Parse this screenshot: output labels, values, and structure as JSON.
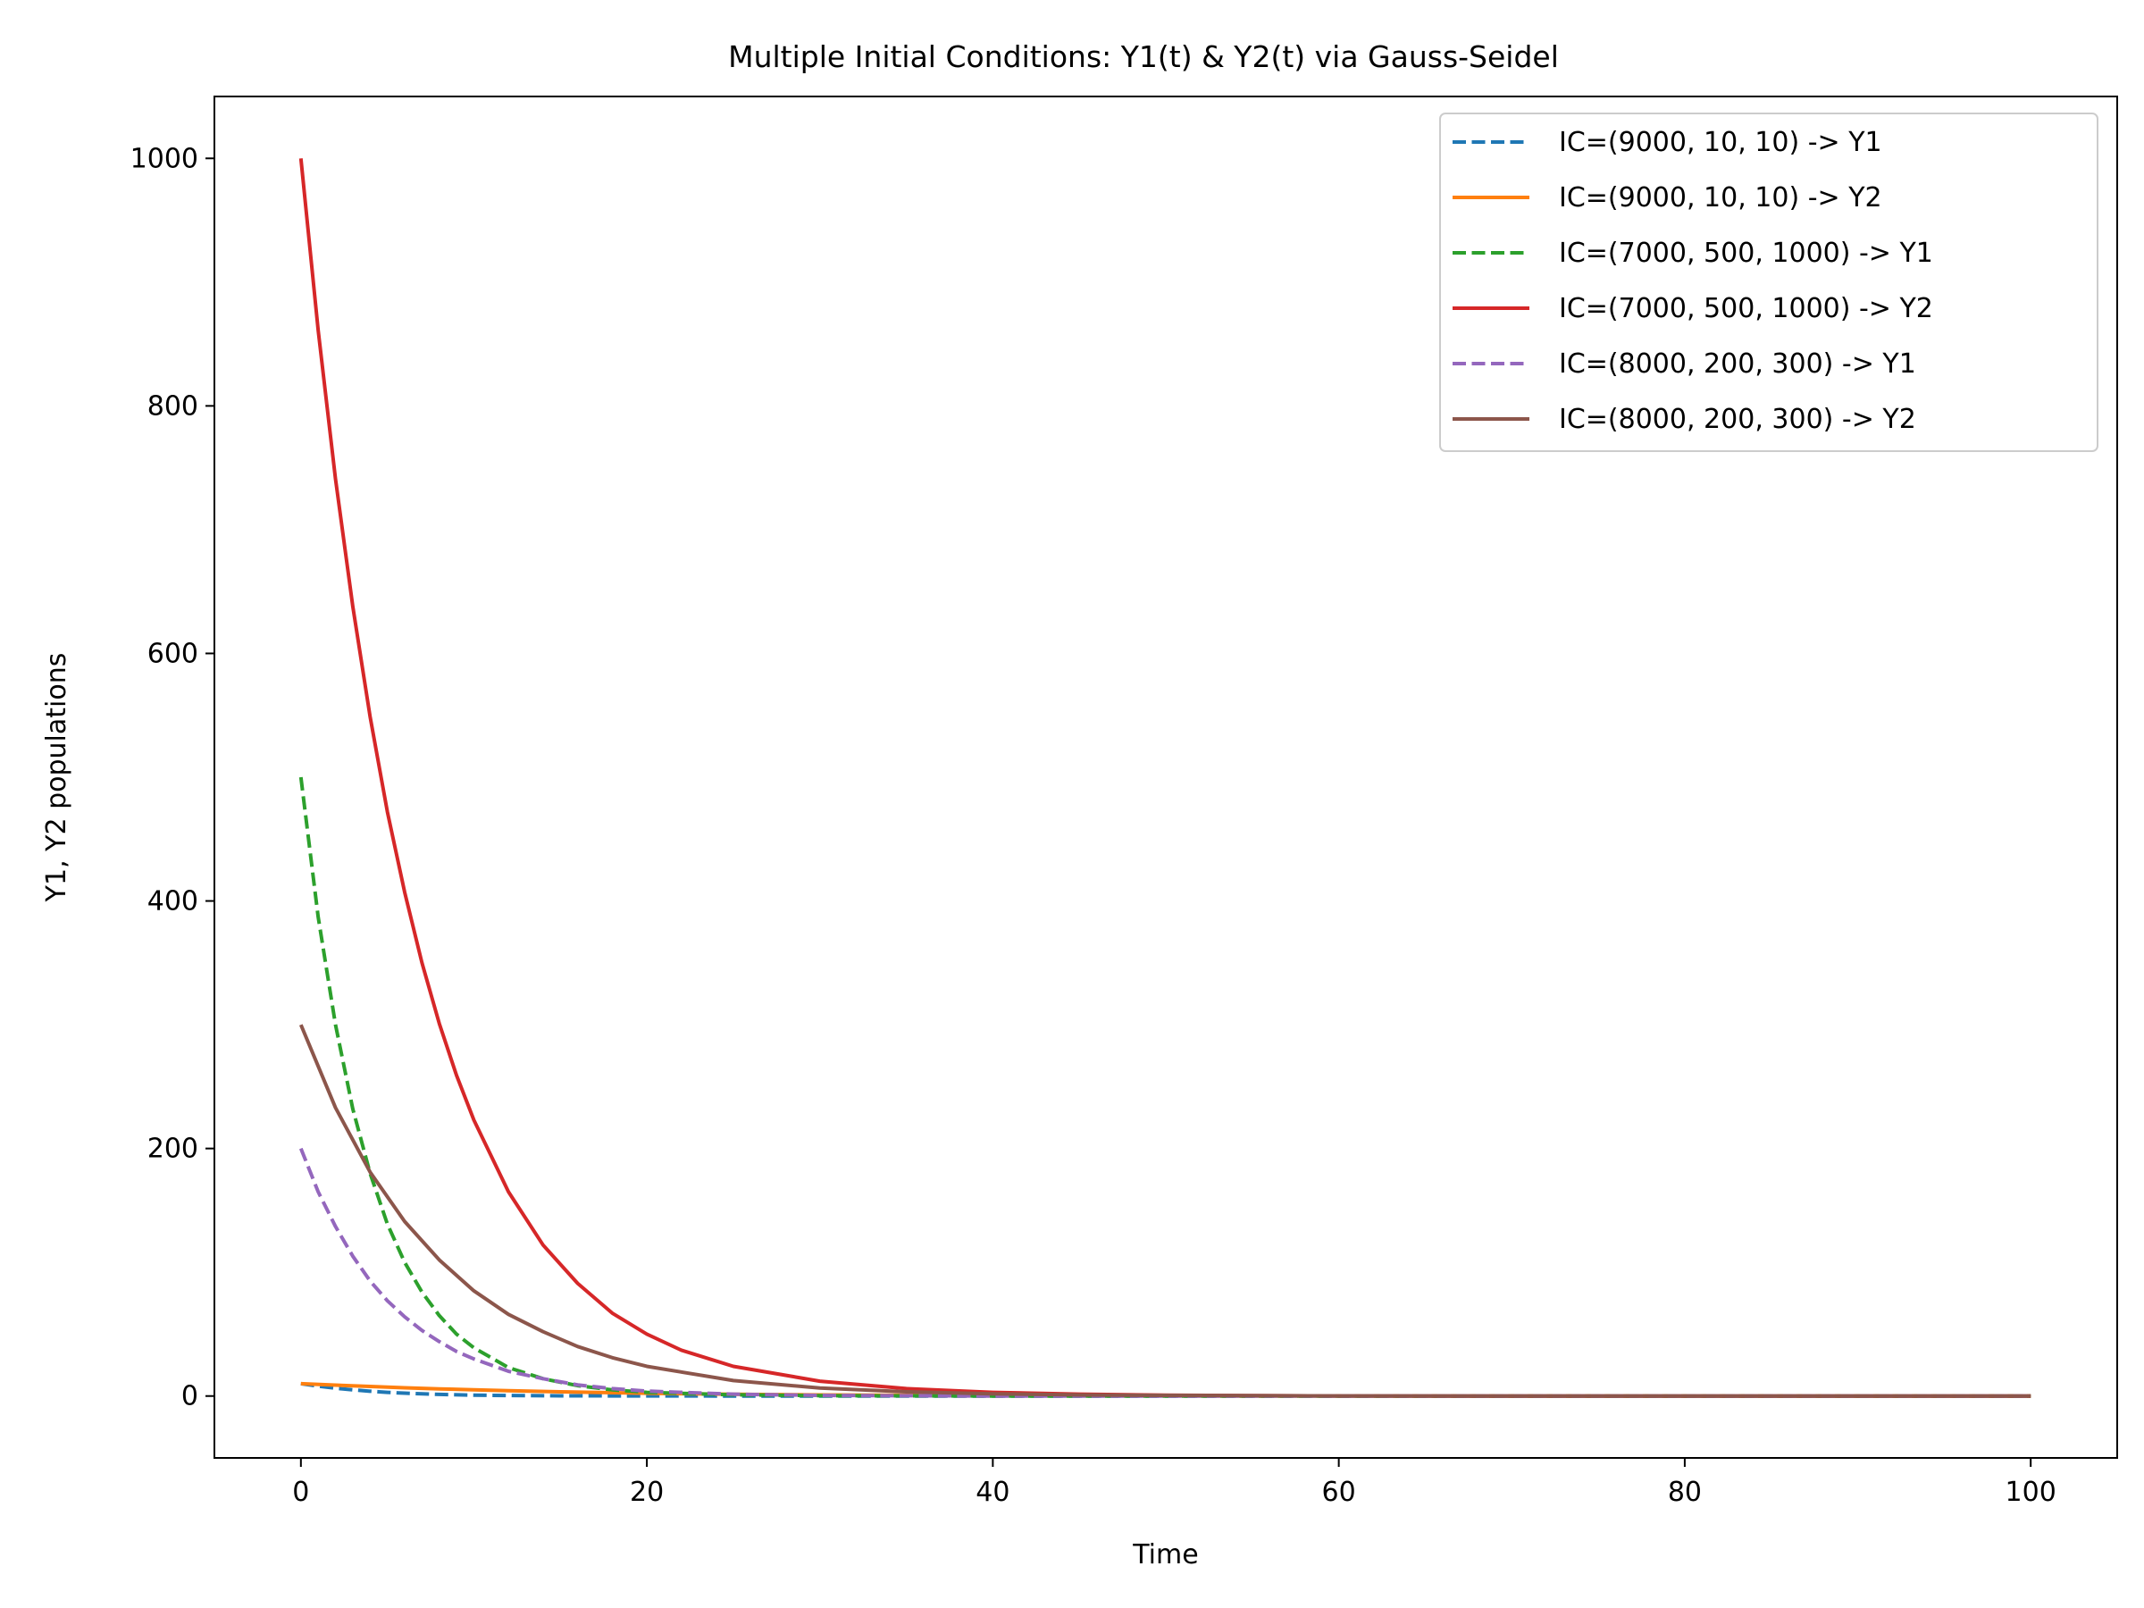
{
  "chart_data": {
    "type": "line",
    "title": "Multiple Initial Conditions: Y1(t) & Y2(t) via Gauss-Seidel",
    "xlabel": "Time",
    "ylabel": "Y1, Y2 populations",
    "xlim": [
      -5,
      105
    ],
    "ylim": [
      -50,
      1050
    ],
    "xticks": [
      0,
      20,
      40,
      60,
      80,
      100
    ],
    "yticks": [
      0,
      200,
      400,
      600,
      800,
      1000
    ],
    "grid": false,
    "legend_position": "top-right",
    "series": [
      {
        "name": "IC=(9000, 10, 10) -> Y1",
        "color": "#1f77b4",
        "dashed": true,
        "x": [
          0,
          1,
          2,
          3,
          4,
          5,
          6,
          8,
          10,
          12,
          15,
          20,
          30,
          40,
          60,
          80,
          100
        ],
        "y": [
          10,
          8,
          6.3,
          5,
          3.9,
          3,
          2.3,
          1.3,
          0.7,
          0.4,
          0.2,
          0.05,
          0,
          0,
          0,
          0,
          0
        ]
      },
      {
        "name": "IC=(9000, 10, 10) -> Y2",
        "color": "#ff7f0e",
        "dashed": false,
        "x": [
          0,
          2,
          4,
          6,
          8,
          10,
          12,
          15,
          20,
          25,
          30,
          40,
          50,
          60,
          80,
          100
        ],
        "y": [
          10,
          8.8,
          7.7,
          6.7,
          5.8,
          5,
          4.3,
          3.4,
          2.2,
          1.4,
          0.9,
          0.4,
          0.15,
          0.05,
          0,
          0
        ]
      },
      {
        "name": "IC=(7000, 500, 1000) -> Y1",
        "color": "#2ca02c",
        "dashed": true,
        "x": [
          0,
          1,
          2,
          3,
          4,
          5,
          6,
          7,
          8,
          9,
          10,
          12,
          14,
          16,
          18,
          20,
          25,
          30,
          40,
          60,
          80,
          100
        ],
        "y": [
          500,
          387,
          300,
          232,
          180,
          139,
          108,
          84,
          65,
          50,
          39,
          23,
          14,
          8.4,
          5,
          3,
          1,
          0.3,
          0,
          0,
          0,
          0
        ]
      },
      {
        "name": "IC=(7000, 500, 1000) -> Y2",
        "color": "#d62728",
        "dashed": false,
        "x": [
          0,
          1,
          2,
          3,
          4,
          5,
          6,
          7,
          8,
          9,
          10,
          12,
          14,
          16,
          18,
          20,
          22,
          25,
          30,
          35,
          40,
          45,
          50,
          55,
          60,
          70,
          80,
          100
        ],
        "y": [
          1000,
          861,
          741,
          638,
          549,
          472,
          407,
          350,
          301,
          259,
          223,
          165,
          122,
          91,
          67,
          50,
          37,
          24,
          12,
          6,
          3,
          1.5,
          0.7,
          0.3,
          0.1,
          0,
          0,
          0
        ]
      },
      {
        "name": "IC=(8000, 200, 300) -> Y1",
        "color": "#9467bd",
        "dashed": true,
        "x": [
          0,
          1,
          2,
          3,
          4,
          5,
          6,
          7,
          8,
          9,
          10,
          12,
          14,
          16,
          18,
          20,
          25,
          30,
          40,
          60,
          80,
          100
        ],
        "y": [
          200,
          165,
          137,
          113,
          93,
          77,
          64,
          53,
          44,
          36,
          30,
          20,
          14,
          9,
          6,
          4,
          1.5,
          0.5,
          0,
          0,
          0,
          0
        ]
      },
      {
        "name": "IC=(8000, 200, 300) -> Y2",
        "color": "#8c564b",
        "dashed": false,
        "x": [
          0,
          2,
          4,
          6,
          8,
          10,
          12,
          14,
          16,
          18,
          20,
          25,
          30,
          35,
          40,
          45,
          50,
          60,
          70,
          80,
          100
        ],
        "y": [
          300,
          233,
          181,
          141,
          110,
          85,
          66,
          52,
          40,
          31,
          24,
          12.5,
          6.5,
          3.4,
          1.8,
          0.9,
          0.5,
          0.1,
          0,
          0,
          0
        ]
      }
    ]
  }
}
